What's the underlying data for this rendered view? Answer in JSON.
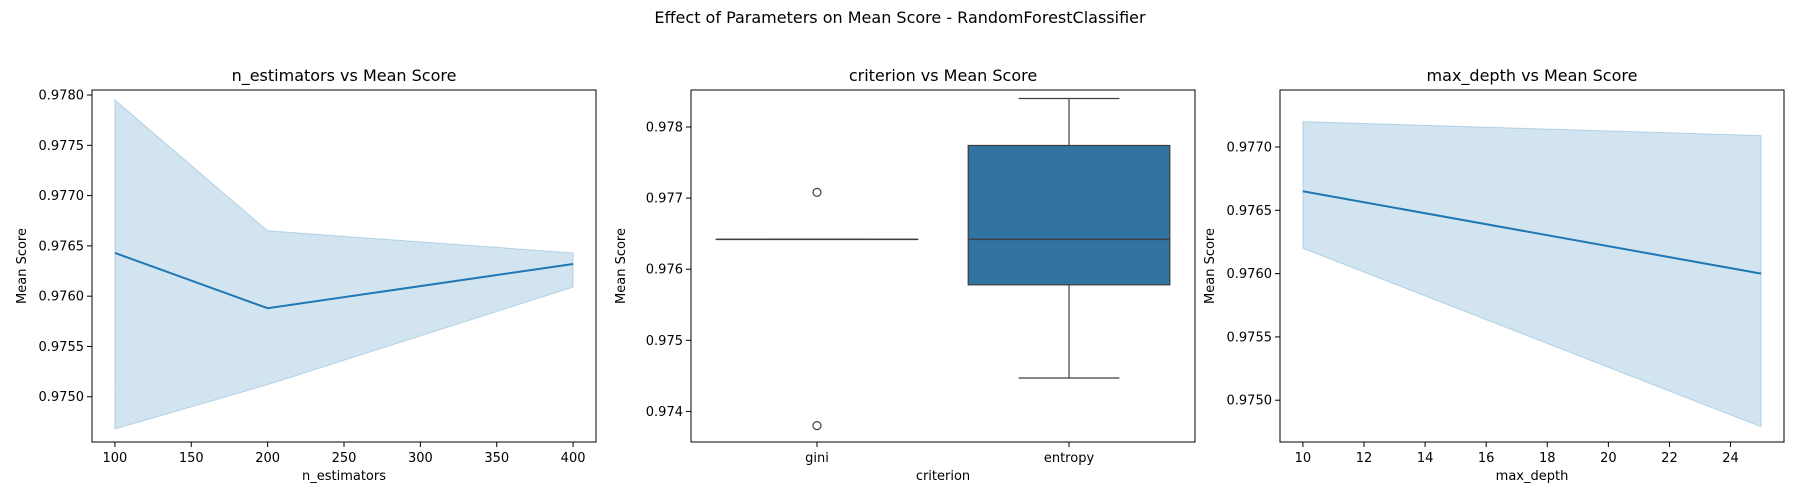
{
  "figure": {
    "title": "Effect of Parameters on Mean Score - RandomForestClassifier"
  },
  "chart_data": [
    {
      "type": "line",
      "title": "n_estimators vs Mean Score",
      "xlabel": "n_estimators",
      "ylabel": "Mean Score",
      "xlim": [
        85,
        415
      ],
      "ylim": [
        0.97455,
        0.97805
      ],
      "xticks": [
        100,
        150,
        200,
        250,
        300,
        350,
        400
      ],
      "yticks": [
        0.975,
        0.9755,
        0.976,
        0.9765,
        0.977,
        0.9775,
        0.978
      ],
      "ytick_labels": [
        "0.9750",
        "0.9755",
        "0.9760",
        "0.9765",
        "0.9770",
        "0.9775",
        "0.9780"
      ],
      "series": [
        {
          "x": [
            100,
            200,
            400
          ],
          "y": [
            0.97643,
            0.97588,
            0.97632
          ],
          "ci_lower": [
            0.97468,
            0.97512,
            0.97609
          ],
          "ci_upper": [
            0.97795,
            0.97665,
            0.97643
          ]
        }
      ],
      "colors": {
        "line": "#1f77b4",
        "band": "#1f77b4"
      }
    },
    {
      "type": "box",
      "title": "criterion vs Mean Score",
      "xlabel": "criterion",
      "ylabel": "Mean Score",
      "categories": [
        "gini",
        "entropy"
      ],
      "ylim": [
        0.97357,
        0.97852
      ],
      "yticks": [
        0.974,
        0.975,
        0.976,
        0.977,
        0.978
      ],
      "ytick_labels": [
        "0.974",
        "0.975",
        "0.976",
        "0.977",
        "0.978"
      ],
      "boxes": [
        {
          "category": "gini",
          "whisker_low": 0.97642,
          "q1": 0.97642,
          "median": 0.97642,
          "q3": 0.97642,
          "whisker_high": 0.97642,
          "outliers": [
            0.97708,
            0.9738
          ]
        },
        {
          "category": "entropy",
          "whisker_low": 0.97447,
          "q1": 0.97578,
          "median": 0.97642,
          "q3": 0.97774,
          "whisker_high": 0.9784,
          "outliers": []
        }
      ],
      "colors": {
        "box_gini": "#1f77b4",
        "box_entropy": "#3274a1"
      }
    },
    {
      "type": "line",
      "title": "max_depth vs Mean Score",
      "xlabel": "max_depth",
      "ylabel": "Mean Score",
      "xlim": [
        9.25,
        25.75
      ],
      "ylim": [
        0.97467,
        0.97745
      ],
      "xticks": [
        10,
        12,
        14,
        16,
        18,
        20,
        22,
        24
      ],
      "yticks": [
        0.975,
        0.9755,
        0.976,
        0.9765,
        0.977
      ],
      "ytick_labels": [
        "0.9750",
        "0.9755",
        "0.9760",
        "0.9765",
        "0.9770"
      ],
      "series": [
        {
          "x": [
            10,
            25
          ],
          "y": [
            0.97665,
            0.976
          ],
          "ci_lower": [
            0.9762,
            0.97479
          ],
          "ci_upper": [
            0.9772,
            0.97709
          ]
        }
      ],
      "colors": {
        "line": "#1f77b4",
        "band": "#1f77b4"
      }
    }
  ]
}
